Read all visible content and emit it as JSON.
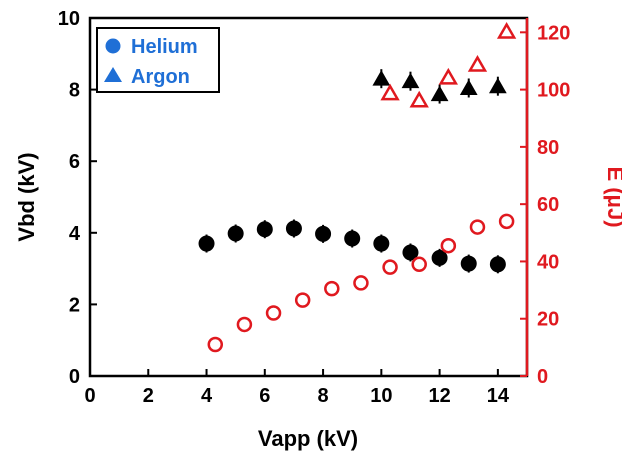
{
  "chart_data": {
    "type": "scatter",
    "xlabel": "Vapp (kV)",
    "ylabel_left": "Vbd (kV)",
    "ylabel_right": "E (μJ)",
    "xlim": [
      0,
      15
    ],
    "ylim_left": [
      0,
      10
    ],
    "ylim_right": [
      0,
      125
    ],
    "xticks": [
      0,
      2,
      4,
      6,
      8,
      10,
      12,
      14
    ],
    "yticks_left": [
      0,
      2,
      4,
      6,
      8,
      10
    ],
    "yticks_right": [
      0,
      20,
      40,
      60,
      80,
      100,
      120
    ],
    "grid": false,
    "legend_position": "top-left",
    "legend": [
      {
        "label": "Helium",
        "marker": "circle"
      },
      {
        "label": "Argon",
        "marker": "triangle"
      }
    ],
    "colors": {
      "left_axis": "#000000",
      "right_axis": "#e0191f",
      "legend_text": "#1f6fd6",
      "legend_box": "#000000"
    },
    "series": [
      {
        "gas": "Helium",
        "quantity": "Vbd",
        "axis": "left",
        "marker": "circle",
        "filled": true,
        "color": "#000000",
        "x": [
          4,
          5,
          6,
          7,
          8,
          9,
          10,
          11,
          12,
          13,
          14
        ],
        "y": [
          3.7,
          3.98,
          4.1,
          4.12,
          3.97,
          3.84,
          3.7,
          3.45,
          3.3,
          3.14,
          3.12
        ]
      },
      {
        "gas": "Argon",
        "quantity": "Vbd",
        "axis": "left",
        "marker": "triangle",
        "filled": true,
        "color": "#000000",
        "x": [
          10,
          11,
          12,
          13,
          14
        ],
        "y": [
          8.28,
          8.21,
          7.85,
          8.02,
          8.07
        ]
      },
      {
        "gas": "Helium",
        "quantity": "E",
        "axis": "right",
        "marker": "circle",
        "filled": false,
        "color": "#e0191f",
        "x": [
          4.3,
          5.3,
          6.3,
          7.3,
          8.3,
          9.3,
          10.3,
          11.3,
          12.3,
          13.3,
          14.3
        ],
        "y": [
          11,
          18,
          22,
          26.5,
          30.5,
          32.5,
          38,
          39,
          45.5,
          52,
          54
        ]
      },
      {
        "gas": "Argon",
        "quantity": "E",
        "axis": "right",
        "marker": "triangle",
        "filled": false,
        "color": "#e0191f",
        "x": [
          10.3,
          11.3,
          12.3,
          13.3,
          14.3
        ],
        "y": [
          98.5,
          96,
          104,
          108.5,
          120
        ]
      }
    ]
  }
}
